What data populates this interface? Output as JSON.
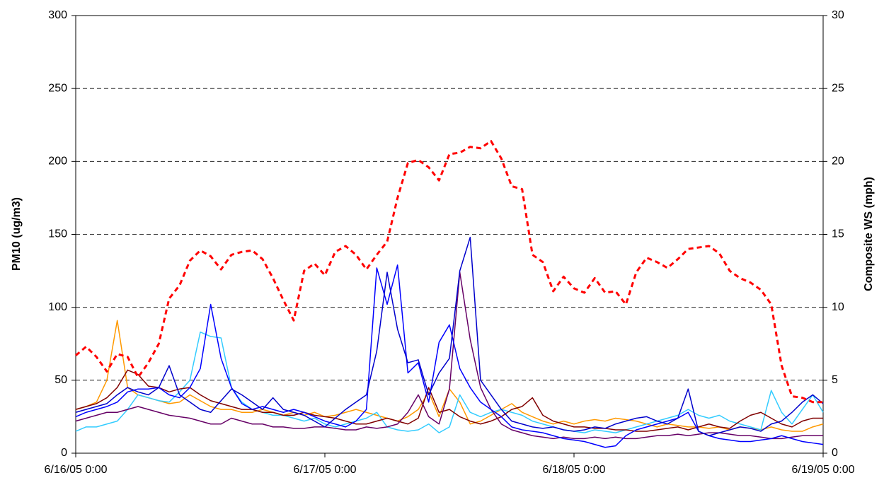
{
  "chart_data": {
    "type": "line",
    "ylabel": "PM10 (ug/m3)",
    "y2label": "Composite WS (mph)",
    "x": [
      0,
      1,
      2,
      3,
      4,
      5,
      6,
      7,
      8,
      9,
      10,
      11,
      12,
      13,
      14,
      15,
      16,
      17,
      18,
      19,
      20,
      21,
      22,
      23,
      24,
      25,
      26,
      27,
      28,
      29,
      30,
      31,
      32,
      33,
      34,
      35,
      36,
      37,
      38,
      39,
      40,
      41,
      42,
      43,
      44,
      45,
      46,
      47,
      48,
      49,
      50,
      51,
      52,
      53,
      54,
      55,
      56,
      57,
      58,
      59,
      60,
      61,
      62,
      63,
      64,
      65,
      66,
      67,
      68,
      69,
      70,
      71,
      72
    ],
    "xlim": [
      0,
      72
    ],
    "xticks": [
      {
        "value": 0,
        "label": "6/16/05 0:00"
      },
      {
        "value": 24,
        "label": "6/17/05 0:00"
      },
      {
        "value": 48,
        "label": "6/18/05 0:00"
      },
      {
        "value": 72,
        "label": "6/19/05 0:00"
      }
    ],
    "ylim": [
      0,
      300
    ],
    "yticks": [
      0,
      50,
      100,
      150,
      200,
      250,
      300
    ],
    "y2lim": [
      0,
      30
    ],
    "y2ticks": [
      0,
      5,
      10,
      15,
      20,
      25,
      30
    ],
    "grid": true,
    "series": [
      {
        "color": "#ff9900",
        "values": [
          30,
          32,
          35,
          50,
          91,
          45,
          40,
          38,
          36,
          34,
          35,
          40,
          36,
          32,
          30,
          30,
          28,
          28,
          30,
          28,
          26,
          28,
          26,
          28,
          25,
          26,
          28,
          30,
          28,
          26,
          24,
          22,
          25,
          30,
          42,
          25,
          44,
          35,
          20,
          22,
          26,
          30,
          34,
          28,
          25,
          22,
          20,
          22,
          20,
          22,
          23,
          22,
          24,
          23,
          22,
          20,
          18,
          20,
          19,
          18,
          18,
          17,
          18,
          16,
          18,
          17,
          16,
          18,
          16,
          15,
          15,
          18,
          20
        ]
      },
      {
        "color": "#33ccff",
        "values": [
          15,
          18,
          18,
          20,
          22,
          30,
          40,
          38,
          36,
          35,
          42,
          50,
          83,
          80,
          79,
          45,
          35,
          30,
          28,
          26,
          26,
          24,
          22,
          24,
          20,
          18,
          20,
          22,
          24,
          28,
          18,
          16,
          15,
          16,
          20,
          14,
          18,
          40,
          28,
          25,
          28,
          30,
          28,
          26,
          22,
          20,
          18,
          16,
          15,
          14,
          16,
          15,
          14,
          16,
          18,
          20,
          22,
          24,
          26,
          30,
          26,
          24,
          26,
          22,
          20,
          18,
          16,
          43,
          28,
          20,
          30,
          40,
          28
        ]
      },
      {
        "color": "#800000",
        "values": [
          30,
          32,
          34,
          38,
          45,
          57,
          54,
          46,
          45,
          42,
          44,
          45,
          40,
          36,
          34,
          32,
          30,
          30,
          28,
          28,
          26,
          26,
          28,
          26,
          25,
          24,
          22,
          20,
          20,
          22,
          24,
          22,
          20,
          24,
          45,
          28,
          30,
          25,
          22,
          20,
          22,
          25,
          30,
          32,
          38,
          26,
          22,
          20,
          18,
          18,
          17,
          17,
          16,
          16,
          15,
          15,
          16,
          17,
          18,
          16,
          18,
          20,
          18,
          17,
          22,
          26,
          28,
          24,
          20,
          18,
          22,
          24,
          24
        ]
      },
      {
        "color": "#660066",
        "values": [
          22,
          24,
          26,
          28,
          28,
          30,
          32,
          30,
          28,
          26,
          25,
          24,
          22,
          20,
          20,
          24,
          22,
          20,
          20,
          18,
          18,
          17,
          17,
          18,
          18,
          17,
          16,
          16,
          18,
          17,
          18,
          20,
          28,
          40,
          25,
          20,
          44,
          124,
          78,
          45,
          30,
          20,
          16,
          14,
          12,
          11,
          10,
          11,
          10,
          10,
          11,
          10,
          11,
          10,
          10,
          11,
          12,
          12,
          13,
          12,
          13,
          14,
          14,
          13,
          12,
          12,
          11,
          10,
          10,
          11,
          12,
          12,
          12
        ]
      },
      {
        "color": "#0000ff",
        "values": [
          25,
          28,
          30,
          32,
          35,
          42,
          44,
          44,
          45,
          40,
          38,
          45,
          58,
          102,
          65,
          45,
          34,
          30,
          32,
          30,
          28,
          30,
          28,
          25,
          22,
          20,
          18,
          22,
          30,
          127,
          102,
          129,
          55,
          62,
          35,
          76,
          88,
          58,
          45,
          35,
          30,
          25,
          18,
          16,
          15,
          14,
          12,
          10,
          9,
          8,
          6,
          4,
          5,
          12,
          16,
          18,
          20,
          22,
          24,
          28,
          15,
          12,
          10,
          9,
          8,
          8,
          9,
          10,
          12,
          10,
          8,
          7,
          6
        ]
      },
      {
        "color": "#0000cc",
        "values": [
          28,
          30,
          32,
          34,
          40,
          45,
          42,
          40,
          45,
          60,
          40,
          35,
          30,
          28,
          36,
          44,
          40,
          35,
          30,
          38,
          30,
          28,
          26,
          22,
          18,
          24,
          30,
          35,
          40,
          70,
          124,
          85,
          62,
          64,
          40,
          55,
          65,
          125,
          148,
          50,
          40,
          30,
          22,
          20,
          18,
          17,
          18,
          16,
          15,
          16,
          18,
          17,
          20,
          22,
          24,
          25,
          22,
          20,
          24,
          44,
          15,
          12,
          14,
          16,
          18,
          17,
          15,
          20,
          22,
          28,
          35,
          40,
          34
        ]
      },
      {
        "color": "#ff0000",
        "axis": "y2",
        "dashed": true,
        "values": [
          6.7,
          7.3,
          6.6,
          5.6,
          6.8,
          6.6,
          5.2,
          6.2,
          7.5,
          10.6,
          11.5,
          13.2,
          13.9,
          13.5,
          12.6,
          13.6,
          13.8,
          13.9,
          13.3,
          12,
          10.5,
          9.1,
          12.5,
          13,
          12.2,
          13.8,
          14.2,
          13.6,
          12.6,
          13.6,
          14.5,
          17.5,
          19.9,
          20.1,
          19.6,
          18.7,
          20.5,
          20.6,
          21,
          20.9,
          21.4,
          20.2,
          18.3,
          18.1,
          13.6,
          13.1,
          11.1,
          12.1,
          11.3,
          11,
          12,
          11,
          11.1,
          10.2,
          12.4,
          13.4,
          13.1,
          12.7,
          13.3,
          14,
          14.1,
          14.2,
          13.7,
          12.5,
          12,
          11.7,
          11.2,
          10.2,
          6,
          3.9,
          3.8,
          3.5,
          3.5
        ]
      }
    ]
  }
}
